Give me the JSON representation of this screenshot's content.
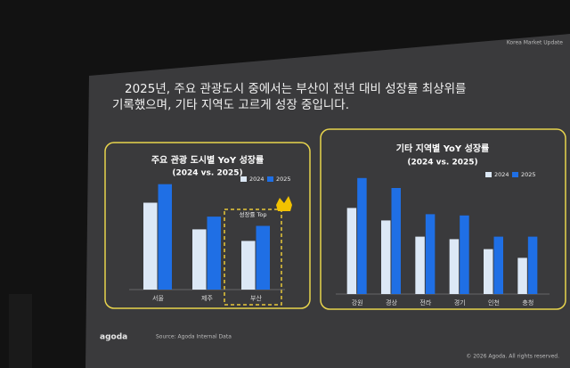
{
  "slide": {
    "header": "Korea Market Update",
    "title_lines": [
      "2025년, 주요 관광도시 중에서는 부산이 전년 대비 성장률 최상위를",
      "기록했으며, 기타 지역도 고르게 성장 중입니다."
    ],
    "logo": "agoda",
    "source": "Source: Agoda Internal Data",
    "copyright": "© 2026 Agoda. All rights reserved."
  },
  "chart_data": [
    {
      "type": "bar",
      "title": "주요 관광 도시별 YoY 성장률",
      "subtitle": "(2024 vs. 2025)",
      "categories": [
        "서울",
        "제주",
        "부산"
      ],
      "series": [
        {
          "name": "2024",
          "color": "#dce8f6",
          "values": [
            75,
            52,
            42
          ]
        },
        {
          "name": "2025",
          "color": "#1f6fe5",
          "values": [
            91,
            63,
            55
          ]
        }
      ],
      "ylim": [
        0,
        100
      ],
      "annotation": "성장률 Top"
    },
    {
      "type": "bar",
      "title": "기타 지역별 YoY 성장률",
      "subtitle": "(2024 vs. 2025)",
      "categories": [
        "강원",
        "경상",
        "전라",
        "경기",
        "인천",
        "충청"
      ],
      "series": [
        {
          "name": "2024",
          "color": "#dce8f6",
          "values": [
            69,
            59,
            46,
            44,
            36,
            29
          ]
        },
        {
          "name": "2025",
          "color": "#1f6fe5",
          "values": [
            93,
            85,
            64,
            63,
            46,
            46
          ]
        }
      ],
      "ylim": [
        0,
        100
      ]
    }
  ]
}
